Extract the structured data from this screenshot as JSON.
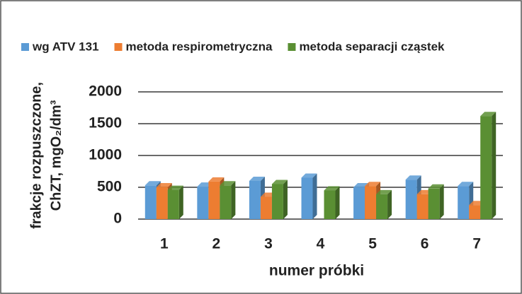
{
  "chart_data": {
    "type": "bar",
    "y_label": [
      "frakcje rozpuszczone,",
      "ChZT, mgO₂/dm³"
    ],
    "x_label": "numer próbki",
    "categories": [
      "1",
      "2",
      "3",
      "4",
      "5",
      "6",
      "7"
    ],
    "series": [
      {
        "name": "wg ATV 131",
        "color": "#5b9bd5",
        "values": [
          530,
          510,
          600,
          650,
          500,
          620,
          520
        ]
      },
      {
        "name": "metoda respirometryczna",
        "color": "#ed7d31",
        "values": [
          500,
          590,
          350,
          null,
          520,
          390,
          220
        ]
      },
      {
        "name": "metoda separacji cząstek",
        "color": "#5a8f33",
        "values": [
          460,
          530,
          550,
          450,
          390,
          480,
          1620
        ]
      }
    ],
    "ylim": [
      0,
      2000
    ],
    "yticks": [
      0,
      500,
      1000,
      1500,
      2000
    ],
    "grid": true,
    "legend": "top"
  }
}
